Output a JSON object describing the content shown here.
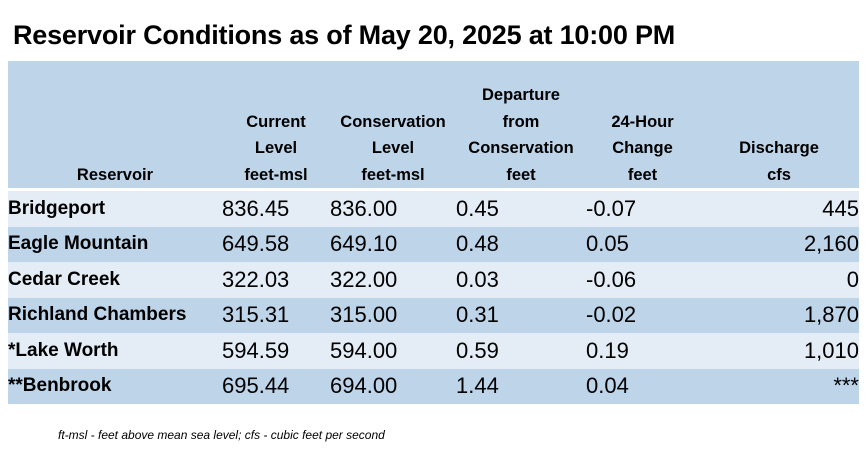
{
  "title": "Reservoir Conditions as of May 20, 2025 at 10:00 PM",
  "headers": {
    "reservoir": "Reservoir",
    "current_level": [
      "Current",
      "Level",
      "feet-msl"
    ],
    "conservation_level": [
      "Conservation",
      "Level",
      "feet-msl"
    ],
    "departure": [
      "Departure",
      "from",
      "Conservation",
      "feet"
    ],
    "change_24h": [
      "24-Hour",
      "Change",
      "feet"
    ],
    "discharge": [
      "Discharge",
      "cfs"
    ]
  },
  "rows": [
    {
      "reservoir": "Bridgeport",
      "current": "836.45",
      "conservation": "836.00",
      "departure": "0.45",
      "change": "-0.07",
      "discharge": "445"
    },
    {
      "reservoir": "Eagle Mountain",
      "current": "649.58",
      "conservation": "649.10",
      "departure": "0.48",
      "change": "0.05",
      "discharge": "2,160"
    },
    {
      "reservoir": "Cedar Creek",
      "current": "322.03",
      "conservation": "322.00",
      "departure": "0.03",
      "change": "-0.06",
      "discharge": "0"
    },
    {
      "reservoir": "Richland Chambers",
      "current": "315.31",
      "conservation": "315.00",
      "departure": "0.31",
      "change": "-0.02",
      "discharge": "1,870"
    },
    {
      "reservoir": "*Lake Worth",
      "current": "594.59",
      "conservation": "594.00",
      "departure": "0.59",
      "change": "0.19",
      "discharge": "1,010"
    },
    {
      "reservoir": "**Benbrook",
      "current": "695.44",
      "conservation": "694.00",
      "departure": "1.44",
      "change": "0.04",
      "discharge": "***"
    }
  ],
  "footnote": "ft-msl - feet above mean sea level; cfs - cubic feet per second",
  "colors": {
    "header_bg": "#bed4e9",
    "row_light": "#e4edf6",
    "row_dark": "#bed4e9"
  }
}
